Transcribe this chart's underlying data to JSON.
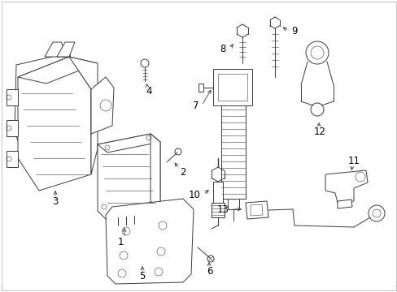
{
  "background_color": "#ffffff",
  "line_color": "#3a3a3a",
  "text_color": "#000000",
  "figsize": [
    4.89,
    3.6
  ],
  "dpi": 100,
  "border_color": "#cccccc"
}
